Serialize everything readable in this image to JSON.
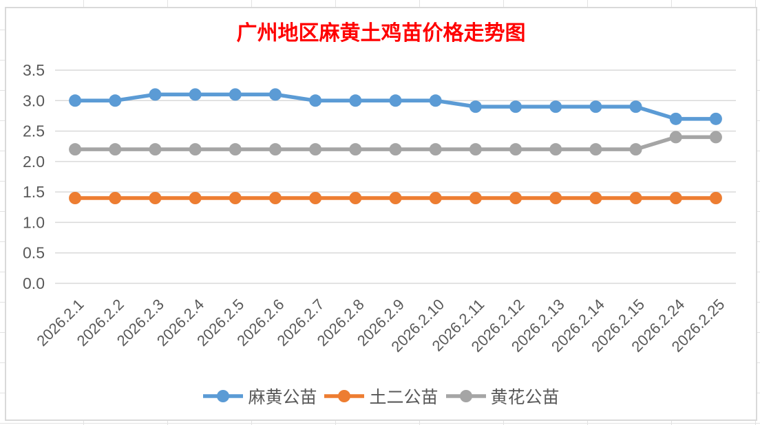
{
  "chart_data": {
    "type": "line",
    "title": "广州地区麻黄土鸡苗价格走势图",
    "categories": [
      "2026.2.1",
      "2026.2.2",
      "2026.2.3",
      "2026.2.4",
      "2026.2.5",
      "2026.2.6",
      "2026.2.7",
      "2026.2.8",
      "2026.2.9",
      "2026.2.10",
      "2026.2.11",
      "2026.2.12",
      "2026.2.13",
      "2026.2.14",
      "2026.2.15",
      "2026.2.24",
      "2026.2.25"
    ],
    "series": [
      {
        "name": "麻黄公苗",
        "color": "#5B9BD5",
        "values": [
          3.0,
          3.0,
          3.1,
          3.1,
          3.1,
          3.1,
          3.0,
          3.0,
          3.0,
          3.0,
          2.9,
          2.9,
          2.9,
          2.9,
          2.9,
          2.7,
          2.7
        ]
      },
      {
        "name": "土二公苗",
        "color": "#ED7D31",
        "values": [
          1.4,
          1.4,
          1.4,
          1.4,
          1.4,
          1.4,
          1.4,
          1.4,
          1.4,
          1.4,
          1.4,
          1.4,
          1.4,
          1.4,
          1.4,
          1.4,
          1.4
        ]
      },
      {
        "name": "黄花公苗",
        "color": "#A5A5A5",
        "values": [
          2.2,
          2.2,
          2.2,
          2.2,
          2.2,
          2.2,
          2.2,
          2.2,
          2.2,
          2.2,
          2.2,
          2.2,
          2.2,
          2.2,
          2.2,
          2.4,
          2.4
        ]
      }
    ],
    "y_axis": {
      "min": 0.0,
      "max": 3.5,
      "step": 0.5,
      "tick_labels": [
        "0.0",
        "0.5",
        "1.0",
        "1.5",
        "2.0",
        "2.5",
        "3.0",
        "3.5"
      ]
    },
    "x_axis": {
      "label_rotation_deg": -45
    },
    "legend_position": "bottom",
    "grid": true
  },
  "colors": {
    "title": "#FF0000",
    "axis_text": "#595959",
    "gridline": "#D9D9D9",
    "chart_border": "#D9D9D9",
    "chart_background": "#FFFFFF"
  }
}
